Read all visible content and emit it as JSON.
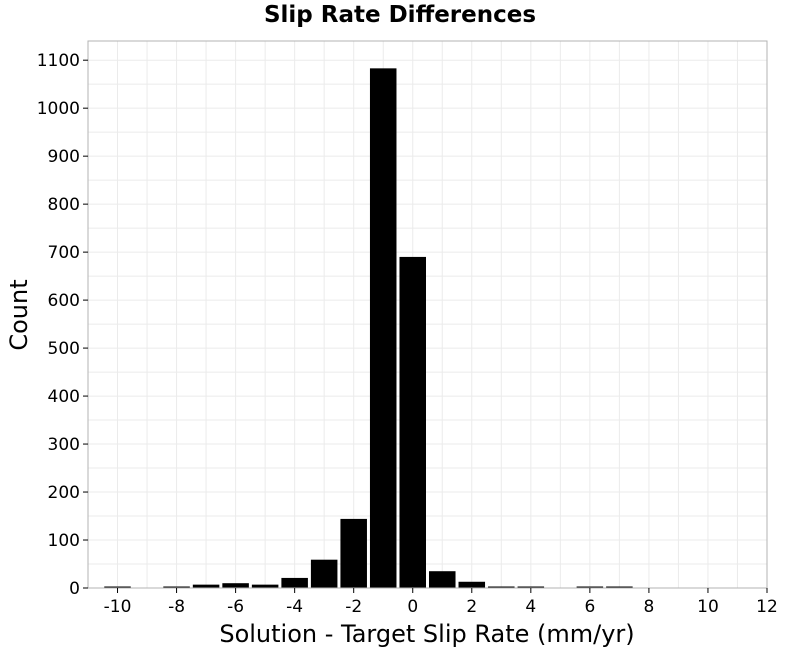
{
  "chart_data": {
    "type": "bar",
    "title": "Slip Rate Differences",
    "xlabel": "Solution - Target Slip Rate (mm/yr)",
    "ylabel": "Count",
    "xlim": [
      -11,
      12
    ],
    "ylim": [
      0,
      1140
    ],
    "bin_width": 1,
    "x_ticks": [
      -10,
      -8,
      -6,
      -4,
      -2,
      0,
      2,
      4,
      6,
      8,
      10,
      12
    ],
    "x_tick_labels": [
      "-10",
      "-8",
      "-6",
      "-4",
      "-2",
      "0",
      "2",
      "4",
      "6",
      "8",
      "10",
      "12"
    ],
    "y_ticks": [
      0,
      100,
      200,
      300,
      400,
      500,
      600,
      700,
      800,
      900,
      1000,
      1100
    ],
    "y_tick_labels": [
      "0",
      "100",
      "200",
      "300",
      "400",
      "500",
      "600",
      "700",
      "800",
      "900",
      "1000",
      "1100"
    ],
    "grid": true,
    "bar_color": "#000000",
    "x": [
      -10,
      -9,
      -8,
      -7,
      -6,
      -5,
      -4,
      -3,
      -2,
      -1,
      0,
      1,
      2,
      3,
      4,
      5,
      6,
      7,
      8,
      9,
      10,
      11
    ],
    "values": [
      1,
      0,
      3,
      7,
      10,
      7,
      21,
      59,
      144,
      1083,
      690,
      35,
      13,
      2,
      1,
      0,
      1,
      1,
      0,
      0,
      0,
      0
    ]
  }
}
